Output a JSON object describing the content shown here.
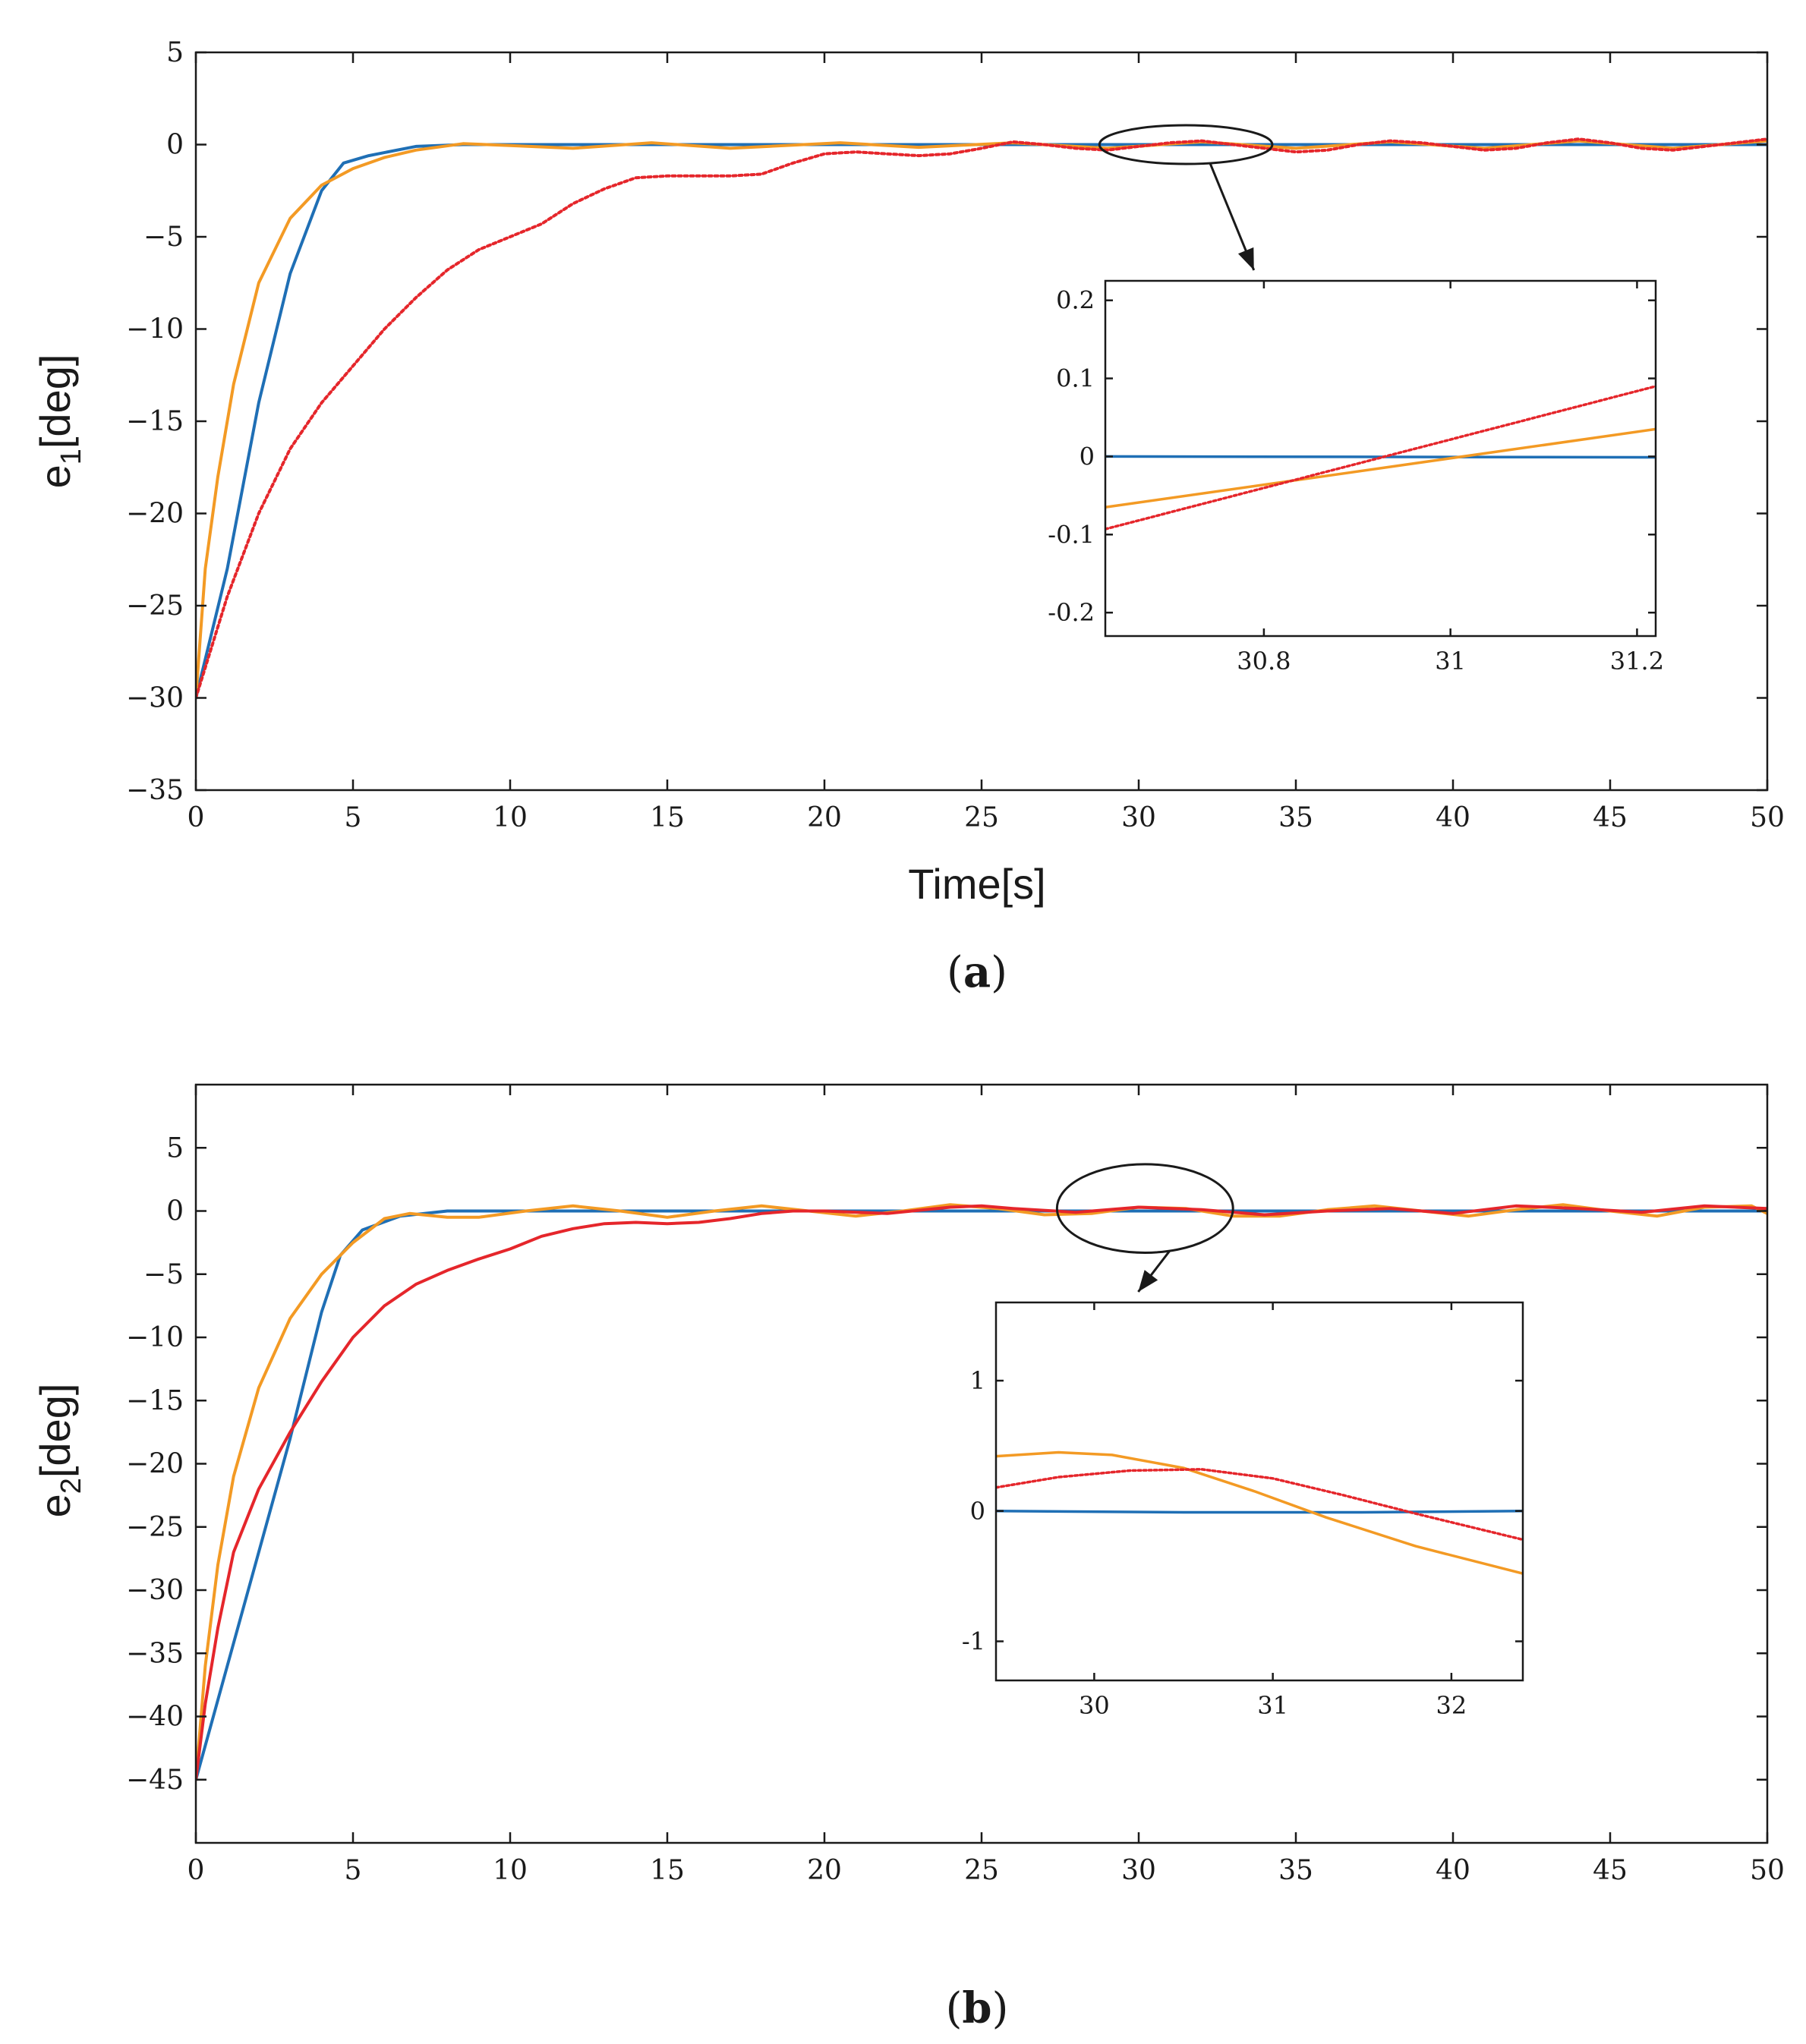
{
  "chart_data": [
    {
      "type": "line",
      "panel_label": "a",
      "ylabel": "e",
      "ylabel_sub": "1",
      "ylabel_suffix": "[deg]",
      "xlabel": "Time[s]",
      "xlim": [
        0,
        50
      ],
      "ylim": [
        -35,
        5
      ],
      "xticks": [
        0,
        5,
        10,
        15,
        20,
        25,
        30,
        35,
        40,
        45,
        50
      ],
      "yticks": [
        5,
        0,
        -5,
        -10,
        -15,
        -20,
        -25,
        -30,
        -35
      ],
      "series": [
        {
          "name": "blue",
          "color": "#1f6fb5",
          "style": "solid",
          "x": [
            0,
            1,
            2,
            3,
            4,
            4.7,
            5.5,
            7,
            8.5,
            10,
            15,
            20,
            25,
            30,
            35,
            40,
            45,
            50
          ],
          "y": [
            -30,
            -23,
            -14,
            -7,
            -2.5,
            -1,
            -0.6,
            -0.1,
            0,
            0,
            0,
            0,
            0,
            0,
            0,
            0,
            0,
            0
          ]
        },
        {
          "name": "orange",
          "color": "#f39a24",
          "style": "solid",
          "x": [
            0,
            0.3,
            0.7,
            1.2,
            2,
            3,
            4,
            5,
            6,
            7,
            8.5,
            10,
            12,
            14.5,
            17,
            20.5,
            23,
            26,
            29,
            32,
            35,
            38,
            41,
            44,
            47,
            50
          ],
          "y": [
            -30,
            -23,
            -18,
            -13,
            -7.5,
            -4,
            -2.2,
            -1.3,
            -0.7,
            -0.3,
            0.05,
            -0.05,
            -0.2,
            0.1,
            -0.2,
            0.1,
            -0.15,
            0.1,
            -0.2,
            0.15,
            -0.2,
            0.15,
            -0.2,
            0.2,
            -0.2,
            0.2
          ]
        },
        {
          "name": "red",
          "color": "#e5262b",
          "style": "dotted",
          "x": [
            0,
            1,
            2,
            3,
            4,
            5,
            6,
            7,
            8,
            9,
            10,
            11,
            12,
            13,
            14,
            15,
            16,
            17,
            18,
            19,
            20,
            21,
            22,
            23,
            24,
            25,
            26,
            27,
            28,
            29,
            30,
            31,
            32,
            33,
            34,
            35,
            36,
            37,
            38,
            39,
            40,
            41,
            42,
            43,
            44,
            45,
            46,
            47,
            48,
            49,
            50
          ],
          "y": [
            -30,
            -24.5,
            -20,
            -16.5,
            -14,
            -12,
            -10,
            -8.3,
            -6.8,
            -5.7,
            -5,
            -4.3,
            -3.2,
            -2.4,
            -1.8,
            -1.7,
            -1.7,
            -1.7,
            -1.6,
            -1,
            -0.5,
            -0.4,
            -0.5,
            -0.6,
            -0.5,
            -0.2,
            0.15,
            0,
            -0.2,
            -0.3,
            -0.1,
            0.1,
            0.2,
            0,
            -0.2,
            -0.4,
            -0.3,
            0,
            0.2,
            0.1,
            -0.1,
            -0.3,
            -0.2,
            0.1,
            0.3,
            0.1,
            -0.2,
            -0.3,
            -0.1,
            0.1,
            0.3
          ]
        }
      ],
      "annotation": {
        "ellipse_center": [
          31.5,
          0
        ],
        "ellipse_rx_data": 2.75,
        "ellipse_ry_data": 1.05
      },
      "inset": {
        "xlim": [
          30.63,
          31.22
        ],
        "ylim": [
          -0.23,
          0.225
        ],
        "xticks": [
          30.8,
          31,
          31.2
        ],
        "xtick_labels": [
          "30.8",
          "31",
          "31.2"
        ],
        "yticks": [
          0.2,
          0.1,
          0,
          -0.1,
          -0.2
        ],
        "ytick_labels": [
          "0.2",
          "0.1",
          "0",
          "-0.1",
          "-0.2"
        ],
        "series": [
          {
            "name": "blue",
            "color": "#1f6fb5",
            "style": "solid",
            "x": [
              30.63,
              31.22
            ],
            "y": [
              0,
              -0.001
            ]
          },
          {
            "name": "orange",
            "color": "#f39a24",
            "style": "solid",
            "x": [
              30.63,
              31.22
            ],
            "y": [
              -0.065,
              0.035
            ]
          },
          {
            "name": "red",
            "color": "#e5262b",
            "style": "dotted",
            "x": [
              30.63,
              31.22
            ],
            "y": [
              -0.093,
              0.09
            ]
          }
        ]
      }
    },
    {
      "type": "line",
      "panel_label": "b",
      "ylabel": "e",
      "ylabel_sub": "2",
      "ylabel_suffix": "[deg]",
      "xlabel": "",
      "xlim": [
        0,
        50
      ],
      "ylim": [
        -50,
        10
      ],
      "xticks": [
        0,
        5,
        10,
        15,
        20,
        25,
        30,
        35,
        40,
        45,
        50
      ],
      "yticks": [
        5,
        0,
        -5,
        -10,
        -15,
        -20,
        -25,
        -30,
        -35,
        -40,
        -45
      ],
      "series": [
        {
          "name": "blue",
          "color": "#1f6fb5",
          "style": "solid",
          "x": [
            0,
            1,
            2,
            3,
            4,
            4.6,
            5.3,
            6.5,
            8,
            10,
            15,
            20,
            25,
            30,
            35,
            40,
            45,
            50
          ],
          "y": [
            -45,
            -36,
            -27,
            -18,
            -8,
            -3.5,
            -1.5,
            -0.4,
            0,
            0,
            0,
            0,
            0,
            0,
            0,
            0,
            0,
            0
          ]
        },
        {
          "name": "orange",
          "color": "#f39a24",
          "style": "solid",
          "x": [
            0,
            0.3,
            0.7,
            1.2,
            2,
            3,
            4,
            5,
            6,
            6.8,
            8,
            9,
            10.5,
            12,
            13.5,
            15,
            16.5,
            18,
            19.5,
            21,
            22.5,
            24,
            25.5,
            27,
            28.5,
            30,
            31.5,
            33,
            34.5,
            36,
            37.5,
            39,
            40.5,
            42,
            43.5,
            45,
            46.5,
            48,
            49.5,
            50
          ],
          "y": [
            -45,
            -36,
            -28,
            -21,
            -14,
            -8.5,
            -5,
            -2.5,
            -0.6,
            -0.2,
            -0.5,
            -0.5,
            0,
            0.4,
            0,
            -0.5,
            0,
            0.4,
            0,
            -0.4,
            0,
            0.5,
            0.2,
            -0.3,
            -0.2,
            0.3,
            0.2,
            -0.4,
            -0.4,
            0.1,
            0.4,
            0,
            -0.4,
            0.1,
            0.5,
            0,
            -0.4,
            0.3,
            0.4,
            -0.2
          ]
        },
        {
          "name": "red",
          "color": "#e5262b",
          "style": "solid",
          "x": [
            0,
            0.3,
            0.7,
            1.2,
            2,
            3,
            4,
            5,
            6,
            7,
            8,
            9,
            10,
            11,
            12,
            13,
            14,
            15,
            16,
            17,
            18,
            19,
            20,
            22,
            24,
            25,
            26,
            28,
            30,
            32,
            34,
            36,
            38,
            40,
            42,
            44,
            46,
            48,
            50
          ],
          "y": [
            -45,
            -39,
            -33,
            -27,
            -22,
            -17.5,
            -13.5,
            -10,
            -7.5,
            -5.8,
            -4.7,
            -3.8,
            -3,
            -2,
            -1.4,
            -1,
            -0.9,
            -1,
            -0.9,
            -0.6,
            -0.2,
            0,
            0,
            -0.2,
            0.3,
            0.4,
            0.2,
            -0.1,
            0.3,
            0.1,
            -0.3,
            0,
            0.2,
            -0.2,
            0.4,
            0.2,
            -0.1,
            0.4,
            0.2
          ]
        }
      ],
      "annotation": {
        "ellipse_center": [
          30.2,
          0.2
        ],
        "ellipse_rx_data": 2.8,
        "ellipse_ry_data": 3.5
      },
      "inset": {
        "xlim": [
          29.45,
          32.4
        ],
        "ylim": [
          -1.3,
          1.6
        ],
        "xticks": [
          30,
          31,
          32
        ],
        "xtick_labels": [
          "30",
          "31",
          "32"
        ],
        "yticks": [
          1,
          0,
          -1
        ],
        "ytick_labels": [
          "1",
          "0",
          "-1"
        ],
        "series": [
          {
            "name": "blue",
            "color": "#1f6fb5",
            "style": "solid",
            "x": [
              29.45,
              30.5,
              31.5,
              32.4
            ],
            "y": [
              0,
              -0.01,
              -0.01,
              0
            ]
          },
          {
            "name": "orange",
            "color": "#f39a24",
            "style": "solid",
            "x": [
              29.45,
              29.8,
              30.1,
              30.5,
              30.9,
              31.3,
              31.8,
              32.4
            ],
            "y": [
              0.42,
              0.45,
              0.43,
              0.33,
              0.15,
              -0.05,
              -0.27,
              -0.48
            ]
          },
          {
            "name": "red",
            "color": "#e5262b",
            "style": "dotted",
            "x": [
              29.45,
              29.8,
              30.2,
              30.6,
              31.0,
              31.4,
              31.8,
              32.4
            ],
            "y": [
              0.18,
              0.26,
              0.31,
              0.32,
              0.25,
              0.12,
              -0.02,
              -0.22
            ]
          }
        ]
      }
    }
  ]
}
